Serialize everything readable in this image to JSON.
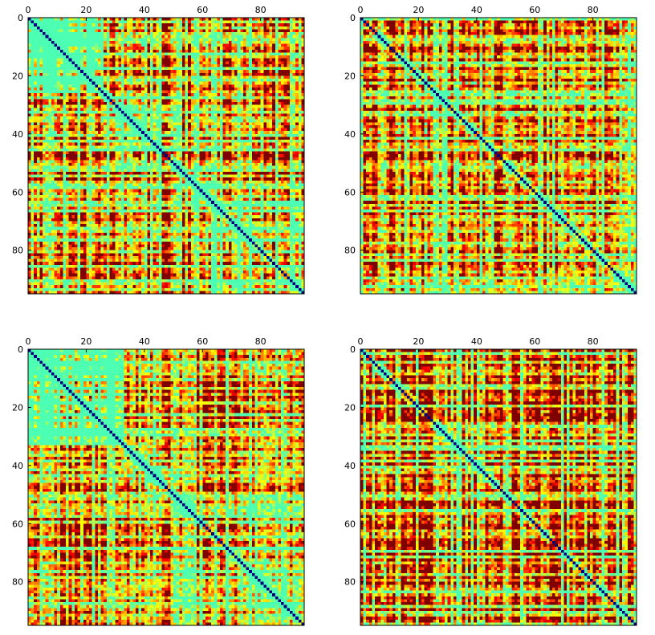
{
  "chart_data": [
    {
      "type": "heatmap",
      "panel": "top-left",
      "matrix_size": 95,
      "colormap": "jet",
      "x_ticks": [
        "0",
        "20",
        "40",
        "60",
        "80"
      ],
      "y_ticks": [
        "0",
        "20",
        "40",
        "60",
        "80"
      ],
      "tick_values": [
        0,
        20,
        40,
        60,
        80
      ],
      "xlim": [
        0,
        95
      ],
      "ylim": [
        95,
        0
      ],
      "x_axis_position": "top",
      "grid": false,
      "legend": "none",
      "diagonal_value": 0.0,
      "block_boundaries": [
        26,
        52,
        63
      ]
    },
    {
      "type": "heatmap",
      "panel": "top-right",
      "matrix_size": 95,
      "colormap": "jet",
      "x_ticks": [
        "0",
        "20",
        "40",
        "60",
        "80"
      ],
      "y_ticks": [
        "0",
        "20",
        "40",
        "60",
        "80"
      ],
      "tick_values": [
        0,
        20,
        40,
        60,
        80
      ],
      "xlim": [
        0,
        95
      ],
      "ylim": [
        95,
        0
      ],
      "x_axis_position": "top",
      "grid": false,
      "legend": "none",
      "diagonal_value": 0.0,
      "block_boundaries": []
    },
    {
      "type": "heatmap",
      "panel": "bottom-left",
      "matrix_size": 95,
      "colormap": "jet",
      "x_ticks": [
        "0",
        "20",
        "40",
        "60",
        "80"
      ],
      "y_ticks": [
        "0",
        "20",
        "40",
        "60",
        "80"
      ],
      "tick_values": [
        0,
        20,
        40,
        60,
        80
      ],
      "xlim": [
        0,
        95
      ],
      "ylim": [
        95,
        0
      ],
      "x_axis_position": "top",
      "grid": false,
      "legend": "none",
      "diagonal_value": 0.0,
      "block_boundaries": [
        33,
        40,
        50
      ]
    },
    {
      "type": "heatmap",
      "panel": "bottom-right",
      "matrix_size": 95,
      "colormap": "jet",
      "x_ticks": [
        "0",
        "20",
        "40",
        "60",
        "80"
      ],
      "y_ticks": [
        "0",
        "20",
        "40",
        "60",
        "80"
      ],
      "tick_values": [
        0,
        20,
        40,
        60,
        80
      ],
      "xlim": [
        0,
        95
      ],
      "ylim": [
        95,
        0
      ],
      "x_axis_position": "top",
      "grid": false,
      "legend": "none",
      "diagonal_value": 0.0,
      "block_boundaries": []
    }
  ]
}
